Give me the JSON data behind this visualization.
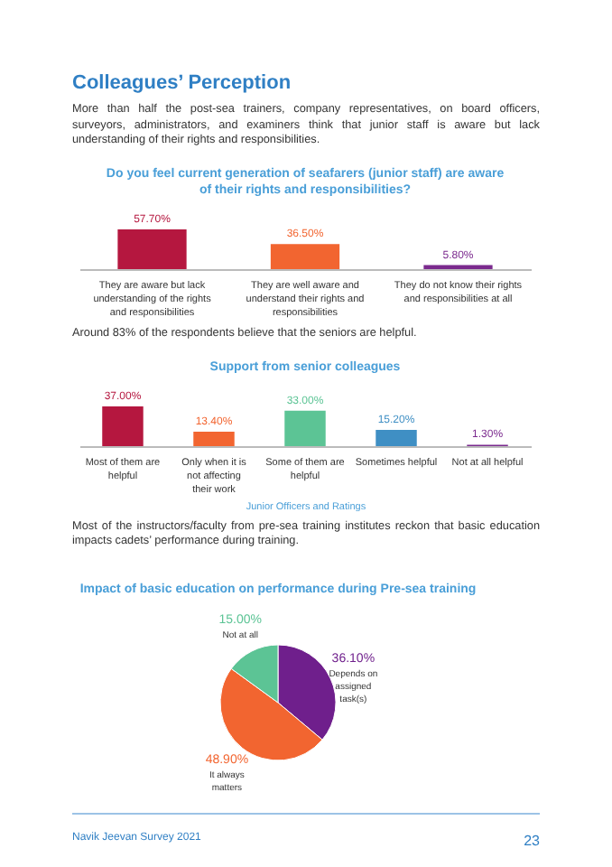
{
  "chart_data": [
    {
      "type": "other",
      "title": "Colleagues’ Perception",
      "annotations": [
        "More than half the post-sea trainers, company representatives, on board officers, surveyors, administrators, and examiners think that junior staff is aware but lack understanding of their rights and responsibilities."
      ]
    },
    {
      "type": "bar",
      "title": "Do you feel current generation of seafarers (junior staff) are aware of their rights and responsibilities?",
      "categories": [
        "They are aware but lack understanding of the rights and responsibilities",
        "They are well aware and understand their rights and responsibilities",
        "They do not know their rights and responsibilities at all"
      ],
      "values": [
        57.7,
        36.5,
        5.8
      ],
      "value_labels": [
        "57.70%",
        "36.50%",
        "5.80%"
      ],
      "colors": [
        "#b5173f",
        "#f26530",
        "#7b2a8e"
      ],
      "legend": false
    },
    {
      "type": "other",
      "annotations": [
        "Around 83% of the respondents believe that the seniors are helpful."
      ]
    },
    {
      "type": "bar",
      "title": "Support from senior colleagues",
      "xlabel": "Junior Officers and Ratings",
      "categories": [
        "Most of them are helpful",
        "Only when it is not affecting their work",
        "Some of them are helpful",
        "Sometimes helpful",
        "Not at all helpful"
      ],
      "values": [
        37.0,
        13.4,
        33.0,
        15.2,
        1.3
      ],
      "value_labels": [
        "37.00%",
        "13.40%",
        "33.00%",
        "15.20%",
        "1.30%"
      ],
      "colors": [
        "#b5173f",
        "#f26530",
        "#5cc495",
        "#3f8fc4",
        "#7b2a8e"
      ],
      "legend": false
    },
    {
      "type": "other",
      "annotations": [
        "Most of the instructors/faculty from pre-sea training institutes reckon that basic education impacts cadets’ performance during training."
      ]
    },
    {
      "type": "pie",
      "title": "Impact of basic education on performance during Pre-sea training",
      "categories": [
        "Depends on assigned task(s)",
        "It always matters",
        "Not at all"
      ],
      "values": [
        36.1,
        48.9,
        15.0
      ],
      "value_labels": [
        "36.10%",
        "48.90%",
        "15.00%"
      ],
      "colors": [
        "#6f1f8c",
        "#f26530",
        "#5cc495"
      ],
      "legend": false
    },
    {
      "type": "other",
      "annotations": [
        "Navik Jeevan Survey 2021",
        "23"
      ]
    }
  ]
}
